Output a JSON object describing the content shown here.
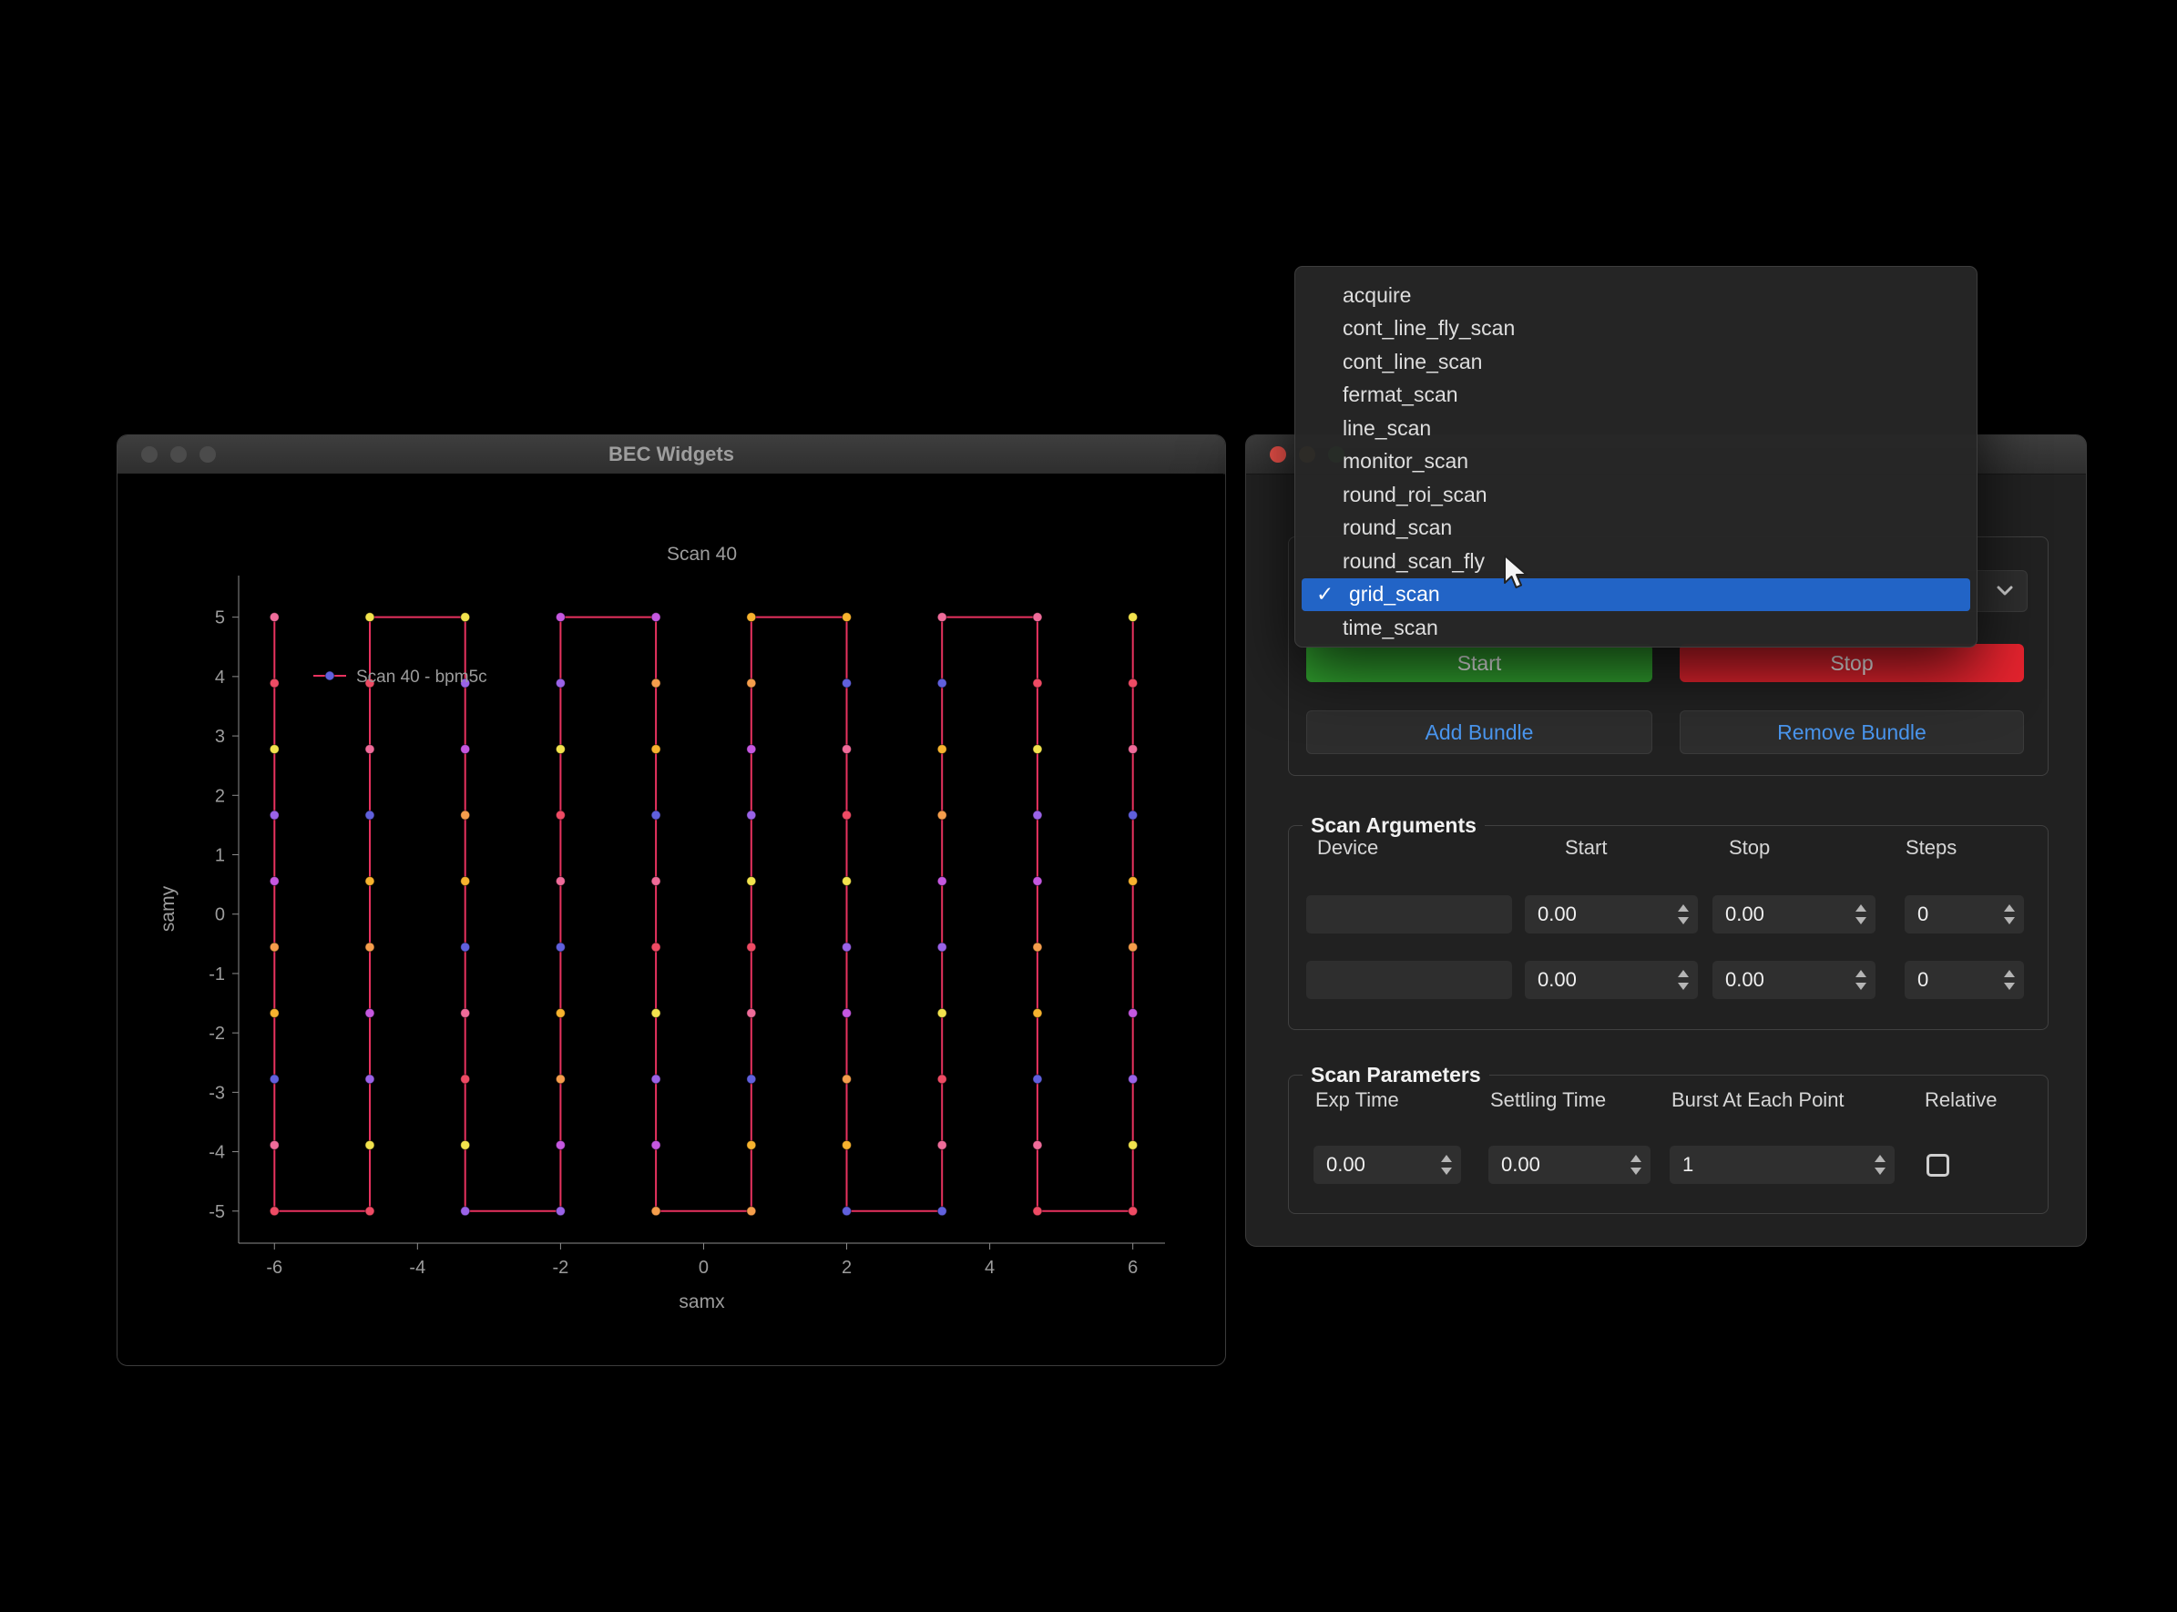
{
  "left_window": {
    "title": "BEC Widgets"
  },
  "chart_data": {
    "type": "scatter",
    "title": "Scan 40",
    "xlabel": "samx",
    "ylabel": "samy",
    "legend": "Scan 40 - bpm5c",
    "x_ticks": [
      -6,
      -4,
      -2,
      0,
      2,
      4,
      6
    ],
    "y_ticks": [
      5,
      4,
      3,
      2,
      1,
      0,
      -1,
      -2,
      -3,
      -4,
      -5
    ],
    "xlim": [
      -6.5,
      6.45
    ],
    "ylim": [
      -5.54,
      5.7
    ],
    "grid_scan": {
      "x_start": -6,
      "x_stop": 6,
      "x_points": 10,
      "y_start": 5,
      "y_stop": -5,
      "y_points": 10,
      "pattern": "vertical-serpentine"
    },
    "line_color": "#e8325f",
    "dot_palette": [
      "#ef6c9a",
      "#f59e4c",
      "#f2e34d",
      "#6060dd",
      "#c558e0",
      "#ee4b64",
      "#f7b32e",
      "#9a63e8"
    ],
    "legend_dot_color": "#6060dd",
    "axis_color": "#8c8c8c",
    "text_color": "#9c9c9c",
    "background": "#000000"
  },
  "scan_menu": {
    "items": [
      "acquire",
      "cont_line_fly_scan",
      "cont_line_scan",
      "fermat_scan",
      "line_scan",
      "monitor_scan",
      "round_roi_scan",
      "round_scan",
      "round_scan_fly",
      "grid_scan",
      "time_scan"
    ],
    "selected": "grid_scan",
    "selected_index": 9,
    "highlight_color": "#2264c6",
    "check_glyph": "✓"
  },
  "control_panel": {
    "start_label": "Start",
    "stop_label": "Stop",
    "add_bundle_label": "Add Bundle",
    "remove_bundle_label": "Remove Bundle",
    "start_color": "#31a22f",
    "stop_color": "#e5232e",
    "bundle_text_color": "#4a96ee",
    "scan_arguments": {
      "title": "Scan Arguments",
      "headers": [
        "Device",
        "Start",
        "Stop",
        "Steps"
      ],
      "rows": [
        {
          "device": "",
          "start": "0.00",
          "stop": "0.00",
          "steps": "0"
        },
        {
          "device": "",
          "start": "0.00",
          "stop": "0.00",
          "steps": "0"
        }
      ]
    },
    "scan_parameters": {
      "title": "Scan Parameters",
      "exp_time_label": "Exp Time",
      "settling_time_label": "Settling Time",
      "burst_label": "Burst At Each Point",
      "relative_label": "Relative",
      "exp_time": "0.00",
      "settling_time": "0.00",
      "burst": "1",
      "relative_checked": false
    }
  }
}
